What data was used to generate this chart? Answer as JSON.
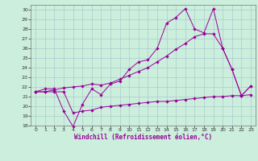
{
  "xlabel": "Windchill (Refroidissement éolien,°C)",
  "bg_color": "#cceedd",
  "line_color": "#990099",
  "grid_color": "#aacccc",
  "xlim": [
    -0.5,
    23.5
  ],
  "ylim": [
    18,
    30.5
  ],
  "xticks": [
    0,
    1,
    2,
    3,
    4,
    5,
    6,
    7,
    8,
    9,
    10,
    11,
    12,
    13,
    14,
    15,
    16,
    17,
    18,
    19,
    20,
    21,
    22,
    23
  ],
  "yticks": [
    18,
    19,
    20,
    21,
    22,
    23,
    24,
    25,
    26,
    27,
    28,
    29,
    30
  ],
  "line1_x": [
    0,
    1,
    2,
    3,
    4,
    5,
    6,
    7,
    8,
    9,
    10,
    11,
    12,
    13,
    14,
    15,
    16,
    17,
    18,
    19,
    20,
    21,
    22,
    23
  ],
  "line1_y": [
    21.5,
    21.8,
    21.8,
    19.5,
    17.9,
    20.2,
    21.8,
    21.2,
    22.3,
    22.6,
    23.8,
    24.6,
    24.8,
    26.0,
    28.6,
    29.2,
    30.1,
    28.0,
    27.6,
    30.1,
    26.0,
    23.8,
    21.1,
    22.1
  ],
  "line2_x": [
    0,
    1,
    2,
    3,
    4,
    5,
    6,
    7,
    8,
    9,
    10,
    11,
    12,
    13,
    14,
    15,
    16,
    17,
    18,
    19,
    20,
    21,
    22,
    23
  ],
  "line2_y": [
    21.5,
    21.5,
    21.7,
    21.9,
    22.0,
    22.1,
    22.3,
    22.2,
    22.4,
    22.8,
    23.2,
    23.6,
    24.0,
    24.6,
    25.2,
    25.9,
    26.5,
    27.2,
    27.5,
    27.5,
    26.0,
    23.8,
    21.1,
    22.1
  ],
  "line3_x": [
    0,
    1,
    2,
    3,
    4,
    5,
    6,
    7,
    8,
    9,
    10,
    11,
    12,
    13,
    14,
    15,
    16,
    17,
    18,
    19,
    20,
    21,
    22,
    23
  ],
  "line3_y": [
    21.5,
    21.5,
    21.5,
    21.5,
    19.3,
    19.5,
    19.6,
    19.9,
    20.0,
    20.1,
    20.2,
    20.3,
    20.4,
    20.5,
    20.5,
    20.6,
    20.7,
    20.8,
    20.9,
    21.0,
    21.0,
    21.1,
    21.1,
    21.2
  ]
}
